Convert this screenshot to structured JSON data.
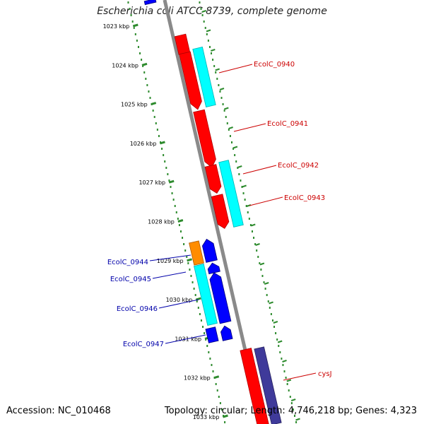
{
  "title": "Escherichia coli ATCC 8739, complete genome",
  "footer": {
    "accession": "Accession: NC_010468",
    "summary": "Topology: circular; Length: 4,746,218 bp; Genes: 4,323"
  },
  "colors": {
    "backbone": "#8a8a8a",
    "forward_cds": "#ff0000",
    "reverse_cds": "#0000ff",
    "forward_feature": "#00ffff",
    "reverse_feature": "#00ffff",
    "orange_feature": "#ff8c00",
    "purple_feature": "#3f3a9a",
    "ruler_ticks": "#2e8b2e",
    "forward_label": "#cc0000",
    "reverse_label": "#0000aa"
  },
  "ruler": {
    "unit": "kbp",
    "ticks": [
      {
        "kbp": 1023,
        "label": "1023 kbp"
      },
      {
        "kbp": 1024,
        "label": "1024 kbp"
      },
      {
        "kbp": 1025,
        "label": "1025 kbp"
      },
      {
        "kbp": 1026,
        "label": "1026 kbp"
      },
      {
        "kbp": 1027,
        "label": "1027 kbp"
      },
      {
        "kbp": 1028,
        "label": "1028 kbp"
      },
      {
        "kbp": 1029,
        "label": "1029 kbp"
      },
      {
        "kbp": 1030,
        "label": "1030 kbp"
      },
      {
        "kbp": 1031,
        "label": "1031 kbp"
      },
      {
        "kbp": 1032,
        "label": "1032 kbp"
      },
      {
        "kbp": 1033,
        "label": "1033 kbp"
      }
    ]
  },
  "forward_labels": [
    "EcolC_0940",
    "EcolC_0941",
    "EcolC_0942",
    "EcolC_0943",
    "cysJ"
  ],
  "reverse_labels": [
    "EcolC_0944",
    "EcolC_0945",
    "EcolC_0946",
    "EcolC_0947"
  ]
}
